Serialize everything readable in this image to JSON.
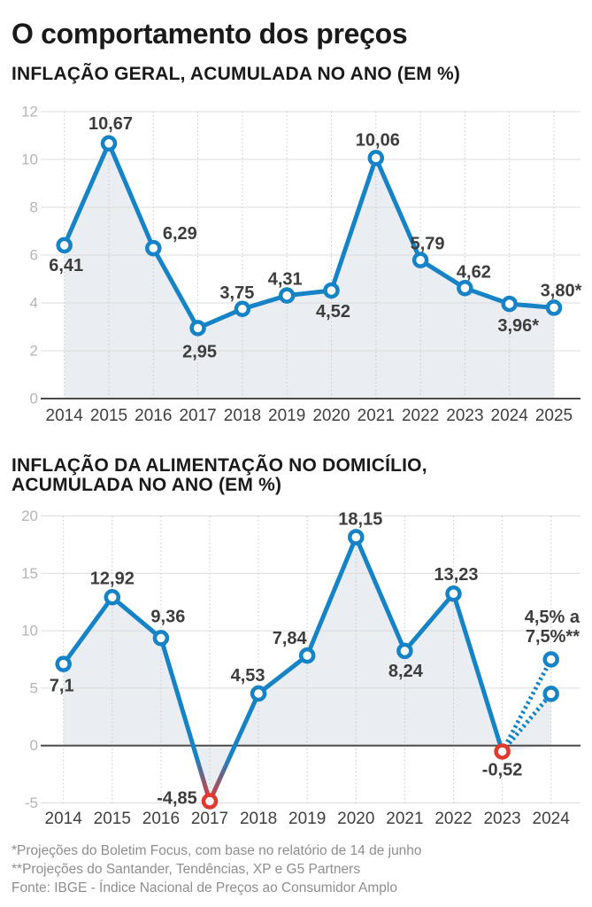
{
  "title": "O comportamento dos preços",
  "chart_data": [
    {
      "type": "line",
      "subtitle": "INFLAÇÃO GERAL, ACUMULADA NO ANO (EM %)",
      "categories": [
        "2014",
        "2015",
        "2016",
        "2017",
        "2018",
        "2019",
        "2020",
        "2021",
        "2022",
        "2023",
        "2024",
        "2025"
      ],
      "values": [
        6.41,
        10.67,
        6.29,
        2.95,
        3.75,
        4.31,
        4.52,
        10.06,
        5.79,
        4.62,
        3.96,
        3.8
      ],
      "point_labels": [
        "6,41",
        "10,67",
        "6,29",
        "2,95",
        "3,75",
        "4,31",
        "4,52",
        "10,06",
        "5,79",
        "4,62",
        "3,96*",
        "3,80*"
      ],
      "ylim": [
        0,
        12
      ],
      "yticks": [
        0,
        2,
        4,
        6,
        8,
        10,
        12
      ],
      "grid": true,
      "area_fill": true
    },
    {
      "type": "line",
      "subtitle": "INFLAÇÃO DA ALIMENTAÇÃO NO DOMICÍLIO, ACUMULADA NO ANO (EM %)",
      "subtitle_lines": [
        "INFLAÇÃO DA ALIMENTAÇÃO NO DOMICÍLIO,",
        "ACUMULADA NO ANO (EM %)"
      ],
      "categories": [
        "2014",
        "2015",
        "2016",
        "2017",
        "2018",
        "2019",
        "2020",
        "2021",
        "2022",
        "2023",
        "2024"
      ],
      "values": [
        7.1,
        12.92,
        9.36,
        -4.85,
        4.53,
        7.84,
        18.15,
        8.24,
        13.23,
        -0.52
      ],
      "point_labels": [
        "7,1",
        "12,92",
        "9,36",
        "-4,85",
        "4,53",
        "7,84",
        "18,15",
        "8,24",
        "13,23",
        "-0,52"
      ],
      "red_marker_indices": [
        3,
        9
      ],
      "projection": {
        "year": "2024",
        "values": [
          7.5,
          4.5
        ],
        "label_lines": [
          "4,5% a",
          "7,5%**"
        ]
      },
      "ylim": [
        -5,
        20
      ],
      "yticks": [
        -5,
        0,
        5,
        10,
        15,
        20
      ],
      "grid": true,
      "area_fill": true
    }
  ],
  "footnotes": [
    "*Projeções do Boletim Focus, com base no relatório de 14 de junho",
    "**Projeções do Santander, Tendências, XP e G5 Partners",
    "Fonte: IBGE - Índice Nacional de Preços ao Consumidor Amplo"
  ],
  "colors": {
    "line_blue": "#1583c5",
    "negative_red": "#e0392f",
    "area_fill": "#eaedf2",
    "h_grid": "#dcdcdc",
    "v_grid": "#c9c9c9",
    "zero_axis": "#4b4b4b",
    "data_label": "#3d3d3d",
    "x_label": "#3f3f3f",
    "y_label": "#b5b5b5",
    "footnote": "#8e8e8e"
  }
}
